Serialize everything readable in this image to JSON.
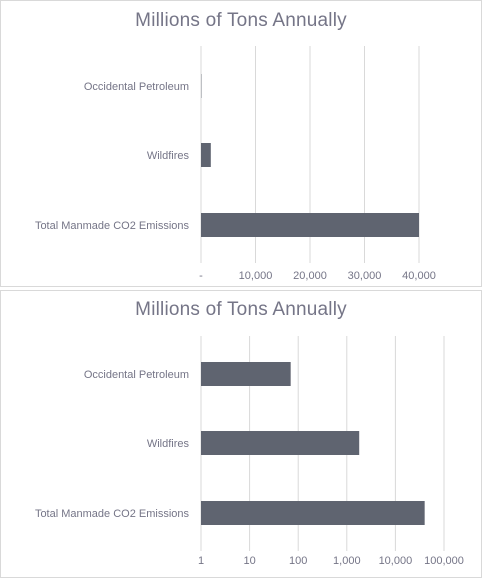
{
  "chart_data": [
    {
      "type": "bar",
      "orientation": "horizontal",
      "title": "Millions of Tons Annually",
      "categories": [
        "Occidental Petroleum",
        "Wildfires",
        "Total Manmade CO2 Emissions"
      ],
      "values": [
        70,
        1800,
        40000
      ],
      "x_scale": "linear",
      "xlim": [
        0,
        40000
      ],
      "tick_values": [
        0,
        10000,
        20000,
        30000,
        40000
      ],
      "tick_labels": [
        "-",
        "10,000",
        "20,000",
        "30,000",
        "40,000"
      ],
      "grid": "vertical",
      "legend": "none",
      "colors": {
        "bar": "#5f6470",
        "grid": "#d9d9d9",
        "text": "#757587"
      }
    },
    {
      "type": "bar",
      "orientation": "horizontal",
      "title": "Millions of Tons Annually",
      "categories": [
        "Occidental Petroleum",
        "Wildfires",
        "Total Manmade CO2 Emissions"
      ],
      "values": [
        70,
        1800,
        40000
      ],
      "x_scale": "log",
      "xlim": [
        1,
        100000
      ],
      "tick_values": [
        1,
        10,
        100,
        1000,
        10000,
        100000
      ],
      "tick_labels": [
        "1",
        "10",
        "100",
        "1,000",
        "10,000",
        "100,000"
      ],
      "grid": "vertical",
      "legend": "none",
      "colors": {
        "bar": "#5f6470",
        "grid": "#d9d9d9",
        "text": "#757587"
      }
    }
  ]
}
